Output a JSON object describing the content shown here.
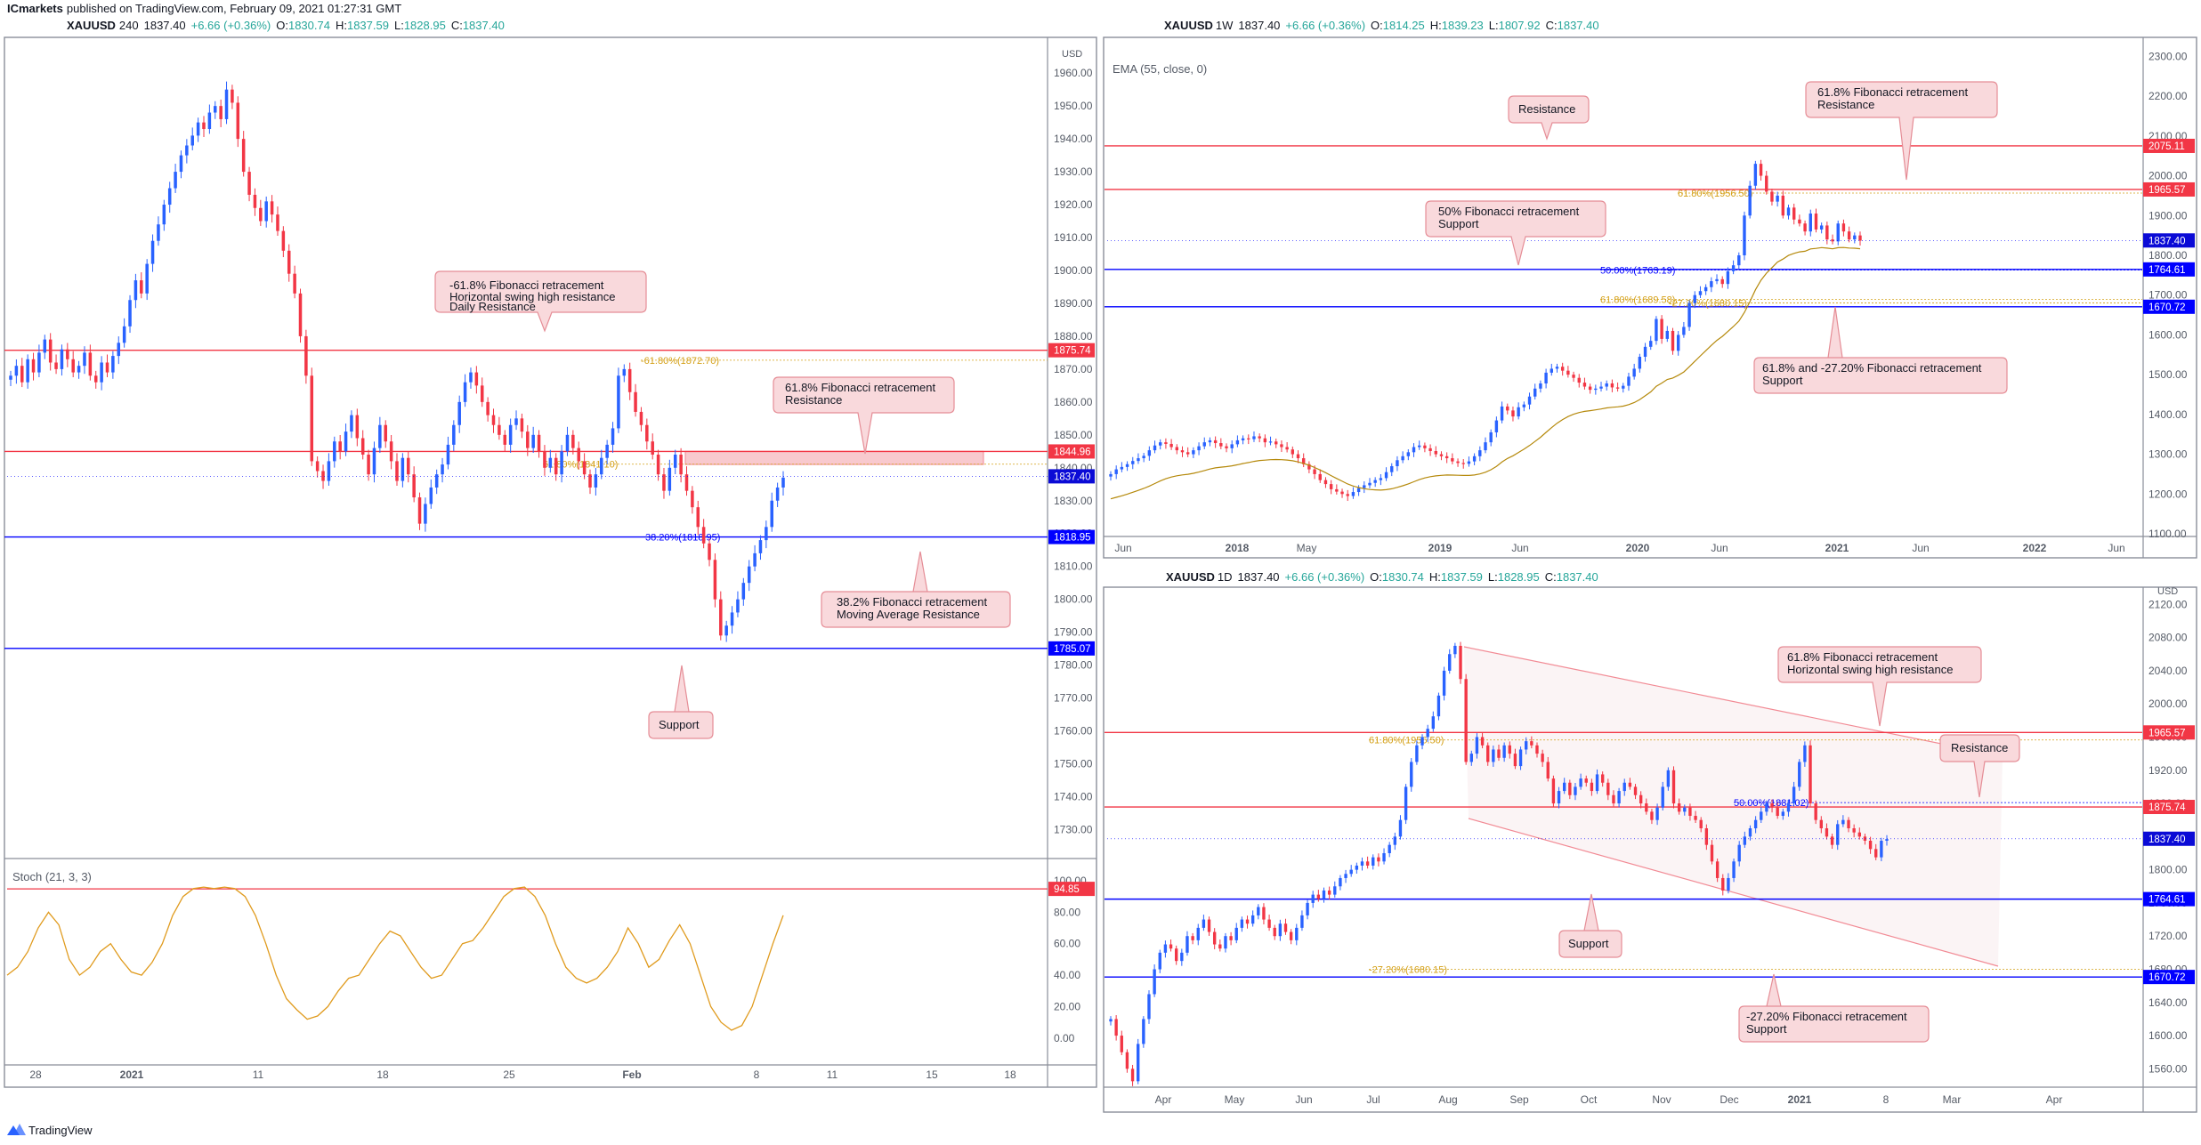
{
  "header": {
    "publisher": "ICmarkets",
    "published_text": "published on TradingView.com, February 09, 2021 01:27:31 GMT",
    "brand": "TradingView"
  },
  "colors": {
    "resistance": "#f23645",
    "support": "#0000ff",
    "fib": "#d4a017",
    "ema": "#b5890b",
    "stoch": "#e09b1e",
    "bull": "#2962ff",
    "bear": "#f23645",
    "callout_fill": "#f9d9dc",
    "callout_border": "#e58d96"
  },
  "chart_data": [
    {
      "id": "h4",
      "type": "candlestick",
      "symbol": "XAUUSD",
      "interval": "240",
      "quote": {
        "last": "1837.40",
        "change": "+6.66 (+0.36%)",
        "O": "1830.74",
        "H": "1837.59",
        "L": "1828.95",
        "C": "1837.40"
      },
      "currency": "USD",
      "y_range": [
        1722,
        1966
      ],
      "y_ticks": [
        "1960.00",
        "1950.00",
        "1940.00",
        "1930.00",
        "1920.00",
        "1910.00",
        "1900.00",
        "1890.00",
        "1880.00",
        "1870.00",
        "1860.00",
        "1850.00",
        "1840.00",
        "1830.00",
        "1820.00",
        "1810.00",
        "1800.00",
        "1790.00",
        "1780.00",
        "1770.00",
        "1760.00",
        "1750.00",
        "1740.00",
        "1730.00"
      ],
      "x_ticks": [
        "28",
        "2021",
        "11",
        "18",
        "25",
        "Feb",
        "8",
        "11",
        "15",
        "18"
      ],
      "horizontal_levels": [
        {
          "value": 1875.74,
          "label": "1875.74",
          "color": "red"
        },
        {
          "value": 1844.96,
          "label": "1844.96",
          "color": "red"
        },
        {
          "value": 1818.95,
          "label": "1818.95",
          "color": "blue"
        },
        {
          "value": 1785.07,
          "label": "1785.07",
          "color": "blue"
        }
      ],
      "price_tag": {
        "value": 1837.4,
        "label": "1837.40"
      },
      "fib_labels": [
        {
          "text": "-61.80%(1872.70)",
          "value": 1872.7,
          "color": "fib"
        },
        {
          "text": "61.80%(1841.10)",
          "value": 1841.1,
          "color": "fib"
        },
        {
          "text": "38.20%(1818.95)",
          "value": 1818.95,
          "color": "blue"
        }
      ],
      "zone": {
        "from": 1841.0,
        "to": 1845.0
      },
      "annotations": [
        {
          "lines": [
            "-61.8%  Fibonacci retracement",
            "Horizontal swing high resistance",
            "Daily Resistance"
          ]
        },
        {
          "lines": [
            "61.8% Fibonacci retracement",
            "Resistance"
          ]
        },
        {
          "lines": [
            "38.2%  Fibonacci retracement",
            "Moving Average Resistance"
          ]
        },
        {
          "lines": [
            "Support"
          ]
        }
      ],
      "stoch": {
        "title": "Stoch (21, 3, 3)",
        "level_tag": "94.85",
        "y_ticks": [
          "100.00",
          "80.00",
          "60.00",
          "40.00",
          "20.00",
          "0.00"
        ],
        "values": [
          40,
          45,
          55,
          70,
          80,
          72,
          50,
          40,
          45,
          55,
          60,
          50,
          42,
          40,
          48,
          60,
          78,
          90,
          95,
          96,
          95,
          96,
          95,
          90,
          78,
          60,
          40,
          25,
          18,
          12,
          14,
          20,
          30,
          38,
          40,
          50,
          60,
          68,
          65,
          55,
          45,
          38,
          40,
          50,
          60,
          62,
          70,
          80,
          90,
          95,
          96,
          90,
          78,
          60,
          45,
          38,
          35,
          38,
          45,
          55,
          70,
          60,
          45,
          50,
          62,
          72,
          60,
          40,
          20,
          10,
          5,
          8,
          20,
          40,
          60,
          78
        ]
      },
      "candles_close": [
        1868,
        1871,
        1866,
        1873,
        1869,
        1875,
        1879,
        1872,
        1870,
        1876,
        1873,
        1869,
        1871,
        1875,
        1868,
        1866,
        1872,
        1869,
        1874,
        1878,
        1883,
        1891,
        1897,
        1893,
        1902,
        1909,
        1914,
        1920,
        1925,
        1930,
        1935,
        1938,
        1941,
        1945,
        1943,
        1948,
        1950,
        1946,
        1955,
        1951,
        1940,
        1930,
        1923,
        1919,
        1915,
        1921,
        1917,
        1912,
        1906,
        1899,
        1893,
        1880,
        1868,
        1842,
        1839,
        1836,
        1842,
        1848,
        1845,
        1851,
        1856,
        1849,
        1844,
        1838,
        1846,
        1853,
        1848,
        1842,
        1836,
        1843,
        1838,
        1831,
        1823,
        1829,
        1834,
        1838,
        1841,
        1847,
        1853,
        1860,
        1866,
        1869,
        1865,
        1860,
        1856,
        1853,
        1850,
        1847,
        1853,
        1855,
        1851,
        1846,
        1850,
        1845,
        1840,
        1843,
        1838,
        1845,
        1850,
        1846,
        1842,
        1838,
        1834,
        1838,
        1843,
        1847,
        1852,
        1868,
        1870,
        1863,
        1857,
        1853,
        1848,
        1844,
        1838,
        1833,
        1840,
        1844,
        1838,
        1833,
        1828,
        1822,
        1817,
        1812,
        1800,
        1789,
        1792,
        1796,
        1800,
        1805,
        1810,
        1814,
        1818,
        1822,
        1830,
        1834,
        1837
      ]
    },
    {
      "id": "w1",
      "type": "candlestick",
      "symbol": "XAUUSD",
      "interval": "1W",
      "quote": {
        "last": "1837.40",
        "change": "+6.66 (+0.36%)",
        "O": "1814.25",
        "H": "1839.23",
        "L": "1807.92",
        "C": "1837.40"
      },
      "indicator": "EMA (55, close, 0)",
      "y_range": [
        1100,
        2330
      ],
      "y_ticks": [
        "2300.00",
        "2200.00",
        "2100.00",
        "2000.00",
        "1900.00",
        "1800.00",
        "1700.00",
        "1600.00",
        "1500.00",
        "1400.00",
        "1300.00",
        "1200.00",
        "1100.00"
      ],
      "x_ticks": [
        "Jun",
        "2018",
        "May",
        "2019",
        "Jun",
        "2020",
        "Jun",
        "2021",
        "Jun",
        "2022",
        "Jun"
      ],
      "horizontal_levels": [
        {
          "value": 2075.11,
          "label": "2075.11",
          "color": "red"
        },
        {
          "value": 1965.57,
          "label": "1965.57",
          "color": "red"
        },
        {
          "value": 1764.61,
          "label": "1764.61",
          "color": "blue"
        },
        {
          "value": 1670.72,
          "label": "1670.72",
          "color": "blue"
        }
      ],
      "price_tag": {
        "value": 1837.4,
        "label": "1837.40"
      },
      "fib_labels": [
        {
          "text": "61.80%(1956.50)",
          "value": 1956.5,
          "color": "fib"
        },
        {
          "text": "50.00%(1763.19)",
          "value": 1763.19,
          "color": "blue"
        },
        {
          "text": "61.80%(1689.58)",
          "value": 1689.58,
          "color": "fib"
        },
        {
          "text": "-27.20%(1680.15)",
          "value": 1680.15,
          "color": "fib"
        }
      ],
      "annotations": [
        {
          "lines": [
            "Resistance"
          ]
        },
        {
          "lines": [
            "61.8%  Fibonacci retracement",
            "Resistance"
          ]
        },
        {
          "lines": [
            "50%  Fibonacci retracement",
            "Support"
          ]
        },
        {
          "lines": [
            "61.8% and -27.20% Fibonacci retracement",
            "Support"
          ]
        }
      ],
      "closes": [
        1250,
        1262,
        1268,
        1275,
        1283,
        1290,
        1296,
        1310,
        1322,
        1330,
        1326,
        1318,
        1310,
        1305,
        1300,
        1310,
        1320,
        1330,
        1335,
        1328,
        1320,
        1315,
        1325,
        1335,
        1340,
        1338,
        1345,
        1340,
        1330,
        1332,
        1325,
        1318,
        1312,
        1300,
        1290,
        1275,
        1262,
        1250,
        1235,
        1225,
        1212,
        1206,
        1200,
        1195,
        1205,
        1215,
        1222,
        1228,
        1235,
        1240,
        1255,
        1270,
        1285,
        1295,
        1305,
        1318,
        1322,
        1315,
        1308,
        1300,
        1295,
        1290,
        1282,
        1278,
        1276,
        1282,
        1295,
        1310,
        1330,
        1355,
        1385,
        1420,
        1410,
        1395,
        1418,
        1425,
        1445,
        1465,
        1478,
        1505,
        1515,
        1520,
        1510,
        1500,
        1492,
        1480,
        1470,
        1462,
        1465,
        1470,
        1478,
        1468,
        1465,
        1472,
        1495,
        1515,
        1545,
        1570,
        1585,
        1640,
        1590,
        1610,
        1560,
        1600,
        1620,
        1680,
        1700,
        1710,
        1720,
        1735,
        1740,
        1728,
        1760,
        1775,
        1800,
        1900,
        1975,
        2030,
        2000,
        1960,
        1935,
        1950,
        1900,
        1920,
        1890,
        1880,
        1860,
        1905,
        1865,
        1875,
        1840,
        1835,
        1880,
        1860,
        1840,
        1850,
        1837
      ]
    },
    {
      "id": "d1",
      "type": "candlestick",
      "symbol": "XAUUSD",
      "interval": "1D",
      "quote": {
        "last": "1837.40",
        "change": "+6.66 (+0.36%)",
        "O": "1830.74",
        "H": "1837.59",
        "L": "1828.95",
        "C": "1837.40"
      },
      "currency": "USD",
      "y_range": [
        1540,
        2130
      ],
      "y_ticks": [
        "2120.00",
        "2080.00",
        "2040.00",
        "2000.00",
        "1960.00",
        "1920.00",
        "1880.00",
        "1840.00",
        "1800.00",
        "1760.00",
        "1720.00",
        "1680.00",
        "1640.00",
        "1600.00",
        "1560.00"
      ],
      "x_ticks": [
        "Apr",
        "May",
        "Jun",
        "Jul",
        "Aug",
        "Sep",
        "Oct",
        "Nov",
        "Dec",
        "2021",
        "8",
        "Mar",
        "Apr"
      ],
      "horizontal_levels": [
        {
          "value": 1965.57,
          "label": "1965.57",
          "color": "red"
        },
        {
          "value": 1875.74,
          "label": "1875.74",
          "color": "red"
        },
        {
          "value": 1764.61,
          "label": "1764.61",
          "color": "blue"
        },
        {
          "value": 1670.72,
          "label": "1670.72",
          "color": "blue"
        }
      ],
      "price_tag": {
        "value": 1837.4,
        "label": "1837.40"
      },
      "fib_labels": [
        {
          "text": "61.80%(1956.50)",
          "value": 1956.5,
          "color": "fib"
        },
        {
          "text": "50.00%(1881.02)",
          "value": 1881.02,
          "color": "blue"
        },
        {
          "text": "-27.20%(1680.15)",
          "value": 1680.15,
          "color": "fib"
        }
      ],
      "annotations": [
        {
          "lines": [
            "61.8%  Fibonacci retracement",
            "Horizontal swing high resistance"
          ]
        },
        {
          "lines": [
            "Resistance"
          ]
        },
        {
          "lines": [
            "Support"
          ]
        },
        {
          "lines": [
            "-27.20% Fibonacci retracement",
            "Support"
          ]
        }
      ],
      "closes": [
        1620,
        1600,
        1580,
        1560,
        1545,
        1590,
        1620,
        1650,
        1680,
        1700,
        1710,
        1705,
        1690,
        1700,
        1720,
        1715,
        1730,
        1740,
        1725,
        1710,
        1705,
        1720,
        1715,
        1730,
        1740,
        1735,
        1745,
        1755,
        1740,
        1730,
        1720,
        1735,
        1725,
        1715,
        1730,
        1745,
        1760,
        1770,
        1765,
        1775,
        1770,
        1780,
        1790,
        1795,
        1800,
        1805,
        1810,
        1805,
        1815,
        1810,
        1820,
        1830,
        1840,
        1860,
        1900,
        1930,
        1950,
        1960,
        1970,
        1985,
        2010,
        2040,
        2060,
        2070,
        2030,
        1930,
        1940,
        1960,
        1950,
        1930,
        1945,
        1935,
        1950,
        1940,
        1925,
        1945,
        1955,
        1950,
        1940,
        1930,
        1910,
        1880,
        1895,
        1905,
        1890,
        1900,
        1910,
        1905,
        1895,
        1915,
        1905,
        1890,
        1880,
        1895,
        1905,
        1900,
        1890,
        1880,
        1870,
        1860,
        1875,
        1900,
        1920,
        1880,
        1870,
        1875,
        1865,
        1860,
        1850,
        1830,
        1810,
        1790,
        1775,
        1790,
        1810,
        1830,
        1840,
        1850,
        1860,
        1870,
        1880,
        1875,
        1865,
        1870,
        1880,
        1900,
        1930,
        1950,
        1880,
        1860,
        1850,
        1840,
        1830,
        1855,
        1860,
        1850,
        1845,
        1840,
        1835,
        1825,
        1815,
        1835,
        1837
      ]
    }
  ]
}
